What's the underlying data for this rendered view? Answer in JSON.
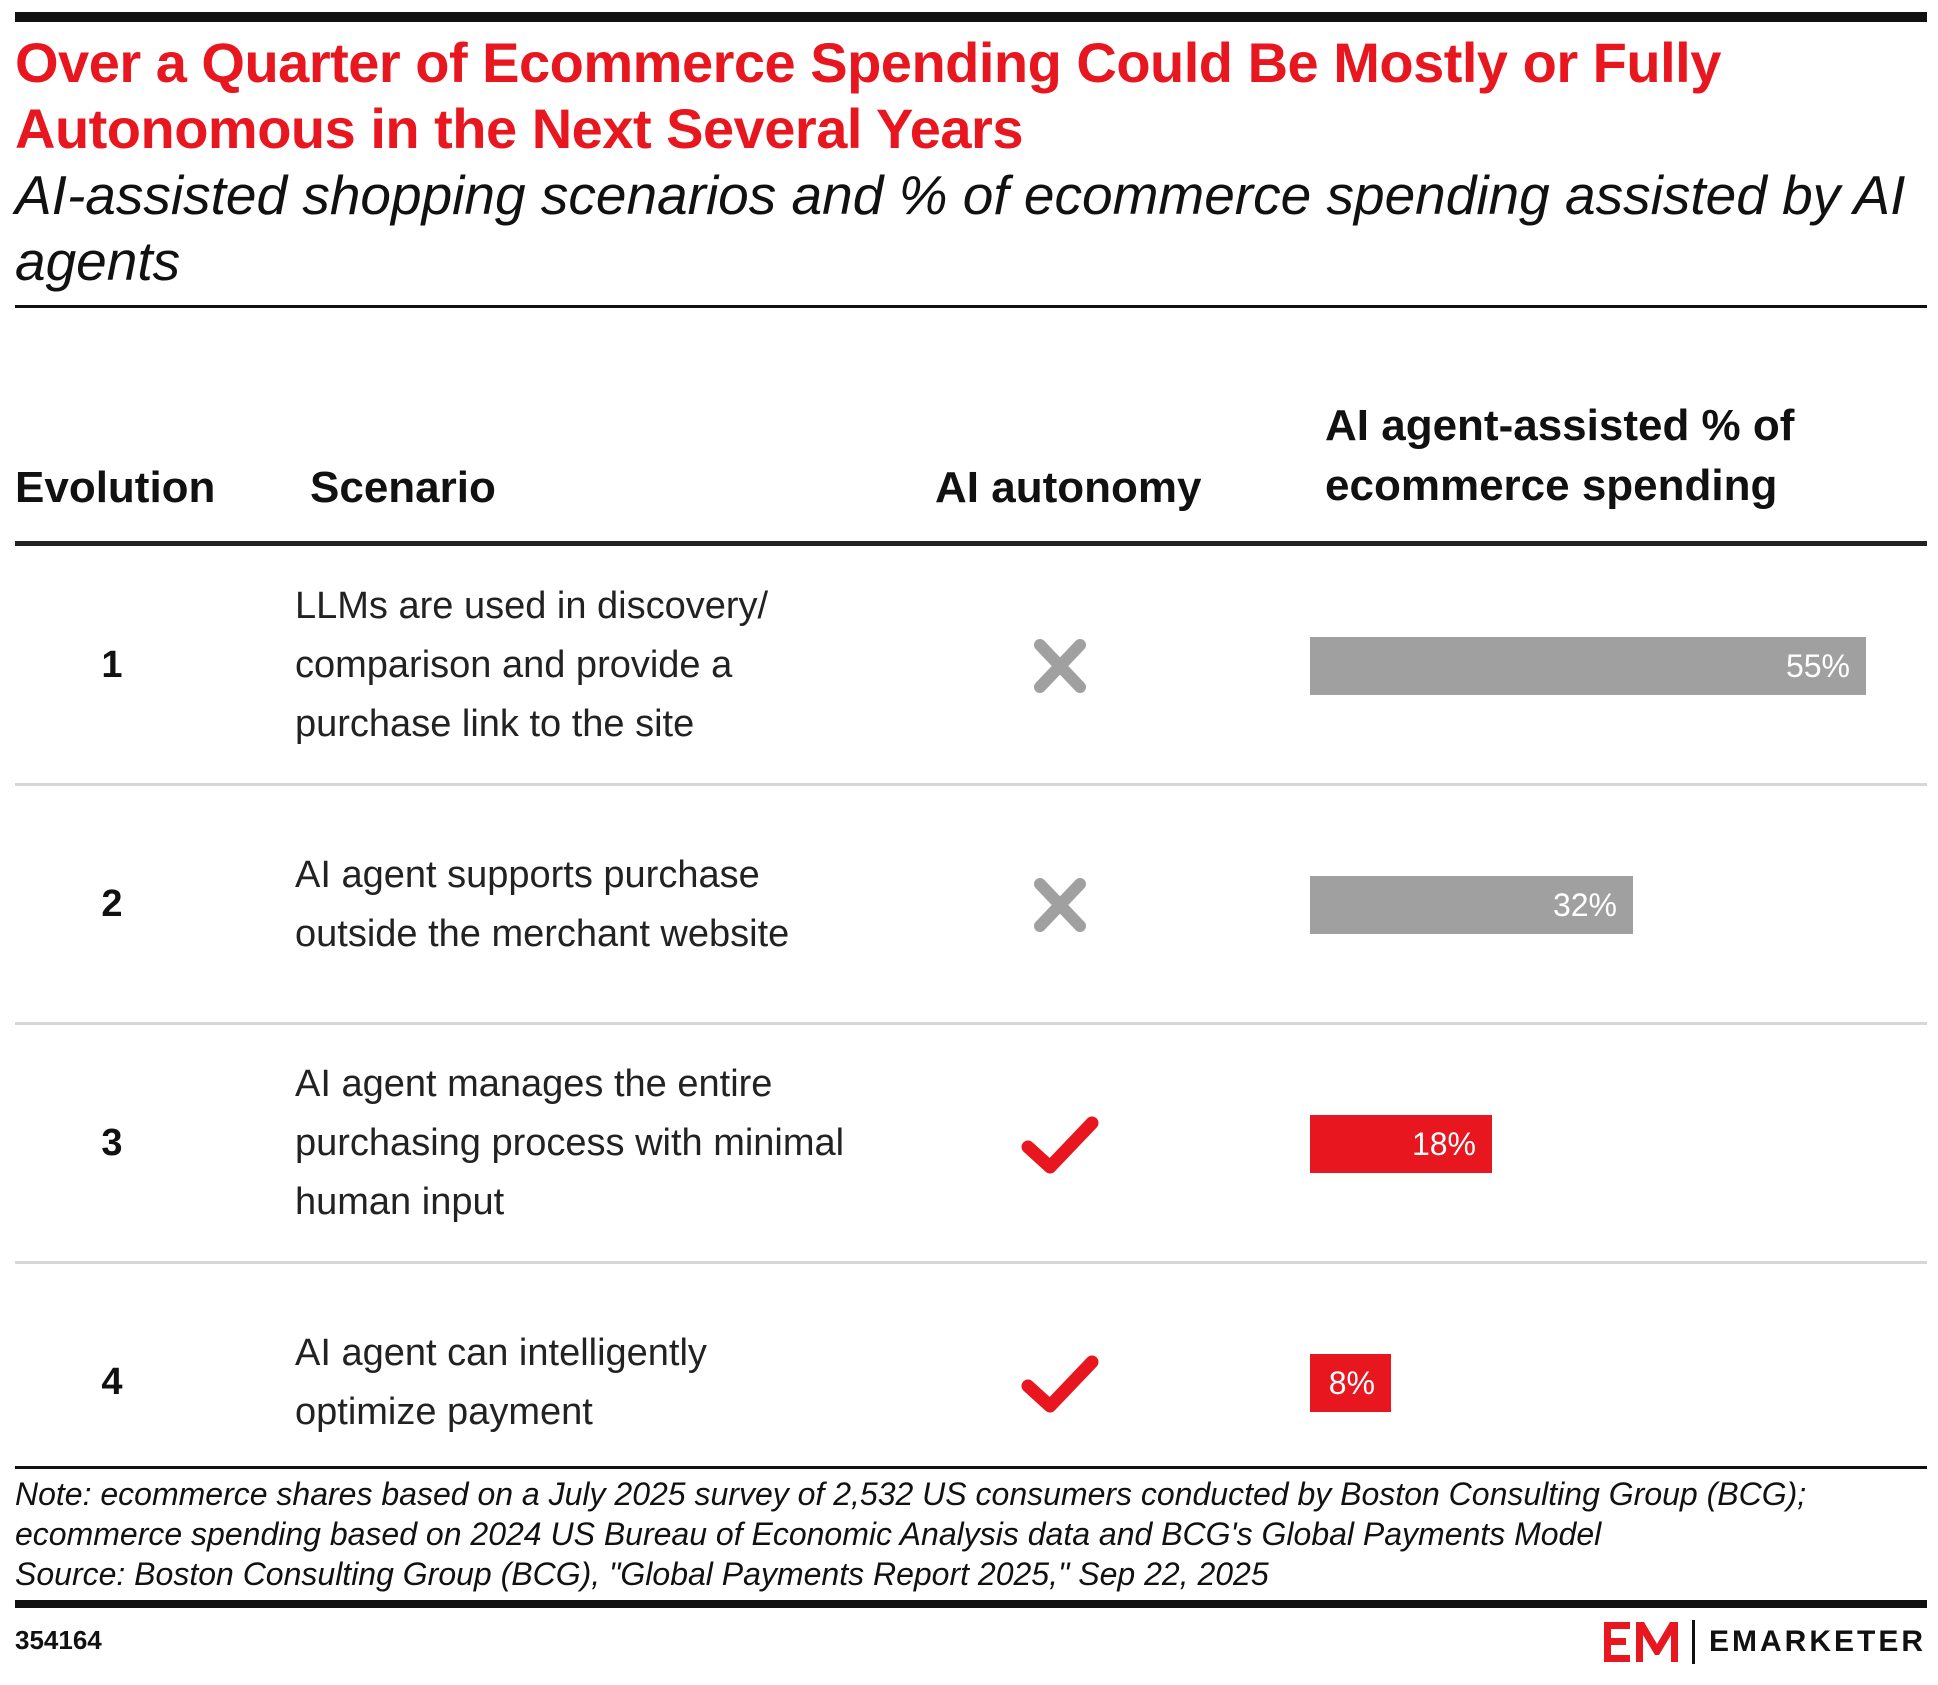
{
  "title": "Over a Quarter of Ecommerce Spending Could Be Mostly or Fully Autonomous in the Next Several Years",
  "subtitle": "AI-assisted shopping scenarios and % of ecommerce spending assisted by AI agents",
  "columns": {
    "evolution": "Evolution",
    "scenario": "Scenario",
    "autonomy": "AI autonomy",
    "share_line1": "AI agent-assisted % of",
    "share_line2": "ecommerce spending"
  },
  "chart_data": {
    "type": "bar",
    "orientation": "horizontal",
    "categories": [
      "1",
      "2",
      "3",
      "4"
    ],
    "scenarios": [
      "LLMs are used in discovery/ comparison and provide a purchase link to the site",
      "AI agent supports purchase outside the merchant website",
      "AI agent manages the entire purchasing process with minimal human input",
      "AI agent can intelligently optimize payment"
    ],
    "ai_autonomy": [
      false,
      false,
      true,
      true
    ],
    "values": [
      55,
      32,
      18,
      8
    ],
    "value_labels": [
      "55%",
      "32%",
      "18%",
      "8%"
    ],
    "unit": "%",
    "xlim": [
      0,
      55
    ],
    "grid": false,
    "colors": {
      "no_autonomy": "#a0a0a0",
      "autonomy": "#e7161f"
    },
    "icons": {
      "no_autonomy": "x-mark-icon",
      "autonomy": "checkmark-icon"
    }
  },
  "footer": {
    "note": "Note: ecommerce shares based on a July 2025 survey of 2,532 US consumers conducted by Boston Consulting Group (BCG); ecommerce spending based on 2024 US Bureau of Economic Analysis data and BCG's Global Payments Model",
    "source": "Source: Boston Consulting Group (BCG), \"Global Payments Report 2025,\" Sep 22, 2025",
    "chart_id": "354164",
    "brand": "EMARKETER",
    "brand_mark": "EM"
  },
  "colors": {
    "accent": "#e7161f",
    "gray_bar": "#a0a0a0",
    "text": "#111111"
  }
}
